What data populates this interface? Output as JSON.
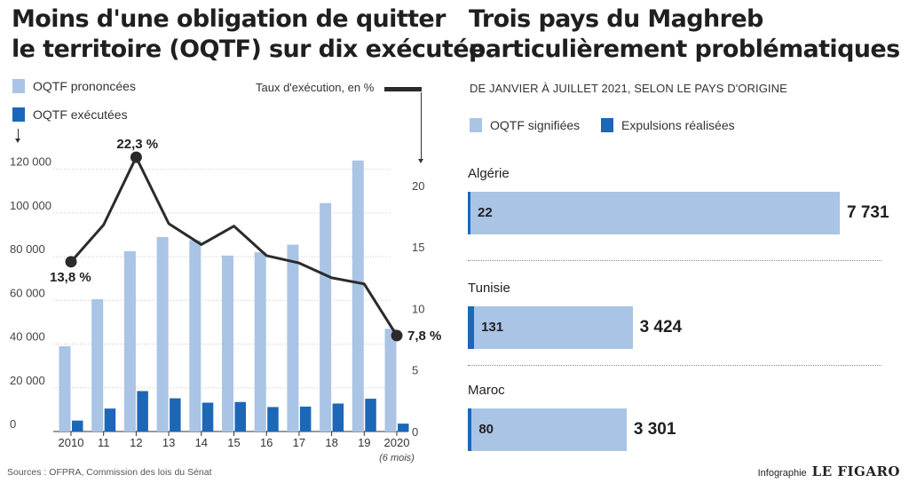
{
  "left": {
    "title_line1": "Moins d'une obligation de quitter",
    "title_line2": "le territoire (OQTF) sur dix exécutée",
    "legend_pronounced": "OQTF prononcées",
    "legend_executed": "OQTF exécutées",
    "legend_rate": "Taux d'exécution, en %",
    "colors": {
      "pronounced": "#a9c4e4",
      "executed": "#1d67b8",
      "rate": "#2b2b2b"
    }
  },
  "right": {
    "title_line1": "Trois pays du Maghreb",
    "title_line2": "particulièrement problématiques",
    "subtitle": "DE JANVIER À JUILLET 2021, SELON LE PAYS D'ORIGINE",
    "legend_notified": "OQTF signifiées",
    "legend_expelled": "Expulsions réalisées"
  },
  "footer": {
    "source": "Sources : OFPRA, Commission des lois du Sénat",
    "credit_label": "Infographie",
    "credit_paper": "LE FIGARO"
  },
  "chart_data": [
    {
      "type": "bar",
      "categories": [
        "2010",
        "11",
        "12",
        "13",
        "14",
        "15",
        "16",
        "17",
        "18",
        "19",
        "2020"
      ],
      "category_note": "(6 mois)",
      "series": [
        {
          "name": "OQTF prononcées",
          "axis": "left",
          "values": [
            39000,
            60500,
            82500,
            89000,
            87500,
            80500,
            82000,
            85500,
            104500,
            124000,
            47000
          ]
        },
        {
          "name": "OQTF exécutées",
          "axis": "left",
          "values": [
            5000,
            10500,
            18500,
            15200,
            13200,
            13500,
            11200,
            11400,
            12800,
            15000,
            3600
          ]
        },
        {
          "name": "Taux d'exécution, en %",
          "type": "line",
          "axis": "right",
          "values": [
            13.8,
            16.8,
            22.3,
            16.9,
            15.2,
            16.7,
            14.3,
            13.7,
            12.5,
            12.0,
            7.8
          ]
        }
      ],
      "annotations": [
        {
          "index": 0,
          "label": "13,8 %"
        },
        {
          "index": 2,
          "label": "22,3 %"
        },
        {
          "index": 10,
          "label": "7,8 %"
        }
      ],
      "ylim": [
        0,
        130000
      ],
      "yticks": [
        0,
        20000,
        40000,
        60000,
        80000,
        100000,
        120000
      ],
      "ytick_labels": [
        "0",
        "20 000",
        "40 000",
        "60 000",
        "80 000",
        "100 000",
        "120 000"
      ],
      "y2lim": [
        0,
        23.1
      ],
      "y2ticks": [
        0,
        5,
        10,
        15,
        20
      ]
    },
    {
      "type": "bar",
      "orientation": "horizontal",
      "categories": [
        "Algérie",
        "Tunisie",
        "Maroc"
      ],
      "series": [
        {
          "name": "OQTF signifiées",
          "values": [
            7731,
            3424,
            3301
          ],
          "labels": [
            "7 731",
            "3 424",
            "3 301"
          ]
        },
        {
          "name": "Expulsions réalisées",
          "values": [
            22,
            131,
            80
          ],
          "labels": [
            "22",
            "131",
            "80"
          ]
        }
      ],
      "xlim": [
        0,
        7731
      ]
    }
  ]
}
